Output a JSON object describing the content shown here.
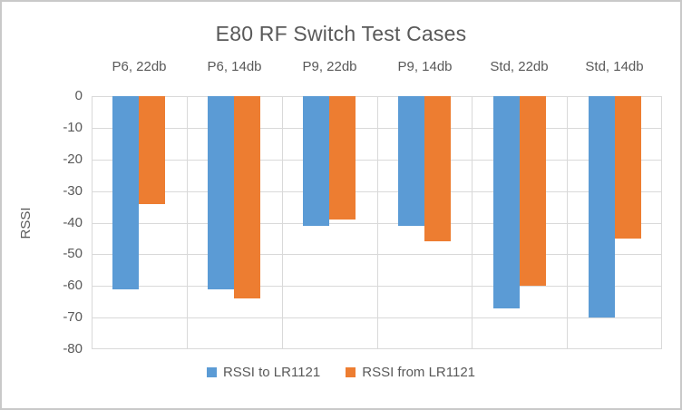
{
  "chart_data": {
    "type": "bar",
    "title": "E80 RF Switch Test Cases",
    "ylabel": "RSSI",
    "xlabel": "",
    "categories": [
      "P6, 22db",
      "P6, 14db",
      "P9, 22db",
      "P9, 14db",
      "Std, 22db",
      "Std, 14db"
    ],
    "series": [
      {
        "name": "RSSI to LR1121",
        "color": "#5B9BD5",
        "values": [
          -61,
          -61,
          -41,
          -41,
          -67,
          -70
        ]
      },
      {
        "name": "RSSI from LR1121",
        "color": "#ED7D31",
        "values": [
          -34,
          -64,
          -39,
          -46,
          -60,
          -45
        ]
      }
    ],
    "ylim": [
      -80,
      0
    ],
    "yticks_labels": [
      "0",
      "-10",
      "-20",
      "-30",
      "-40",
      "-50",
      "-60",
      "-70",
      "-80"
    ],
    "grid": true,
    "legend_position": "bottom",
    "bar_orientation": "vertical-negative",
    "colors": {
      "text": "#595959",
      "gridline": "#d9d9d9",
      "background": "#ffffff",
      "border": "#c9c9c9"
    }
  }
}
